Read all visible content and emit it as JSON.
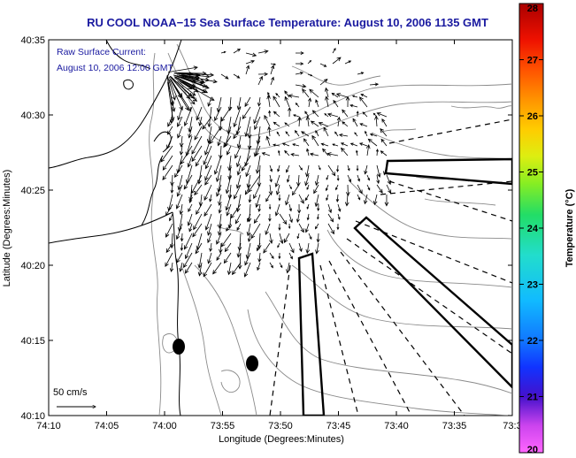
{
  "title": "RU COOL  NOAA−15  Sea Surface Temperature:  August 10, 2006 1135 GMT",
  "annotation": {
    "line1": "Raw Surface Current:",
    "line2": "August 10, 2006 12:00 GMT"
  },
  "scale_label": "50 cm/s",
  "axes": {
    "xlabel": "Longitude (Degrees:Minutes)",
    "ylabel": "Latitude (Degrees:Minutes)",
    "x_ticks": [
      "74:10",
      "74:05",
      "74:00",
      "73:55",
      "73:50",
      "73:45",
      "73:40",
      "73:35",
      "73:3"
    ],
    "y_ticks": [
      "40:35",
      "40:30",
      "40:25",
      "40:20",
      "40:15",
      "40:10"
    ]
  },
  "colorbar": {
    "label": "Temperature (°C)",
    "ticks": [
      "28",
      "27",
      "26",
      "25",
      "24",
      "23",
      "22",
      "21",
      "20"
    ],
    "min": 20,
    "max": 28
  },
  "colors": {
    "title": "#1a1aa0",
    "coast": "#000000",
    "bathymetry": "#888888",
    "vectors": "#000000"
  }
}
